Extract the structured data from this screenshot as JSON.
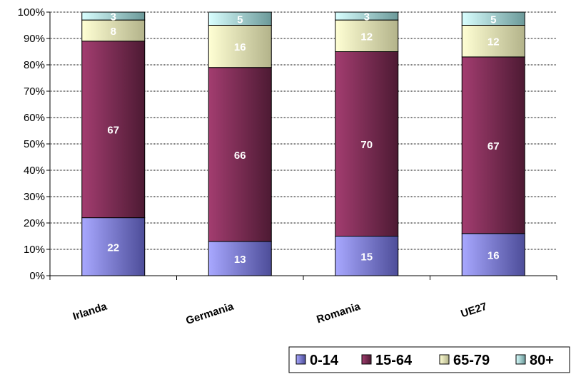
{
  "chart_data": {
    "type": "bar",
    "stacked": true,
    "categories": [
      "Irlanda",
      "Germania",
      "Romania",
      "UE27"
    ],
    "series": [
      {
        "name": "0-14",
        "values": [
          22,
          13,
          15,
          16
        ],
        "color": "#9999ff"
      },
      {
        "name": "15-64",
        "values": [
          67,
          66,
          70,
          67
        ],
        "color": "#993366"
      },
      {
        "name": "65-79",
        "values": [
          8,
          16,
          12,
          12
        ],
        "color": "#ffffcc"
      },
      {
        "name": "80+",
        "values": [
          3,
          5,
          3,
          5
        ],
        "color": "#ccffff"
      }
    ],
    "yticks": [
      "0%",
      "10%",
      "20%",
      "30%",
      "40%",
      "50%",
      "60%",
      "70%",
      "80%",
      "90%",
      "100%"
    ],
    "ylim": [
      0,
      100
    ],
    "grid": true,
    "legend_position": "bottom-right",
    "title": "",
    "xlabel": "",
    "ylabel": ""
  }
}
